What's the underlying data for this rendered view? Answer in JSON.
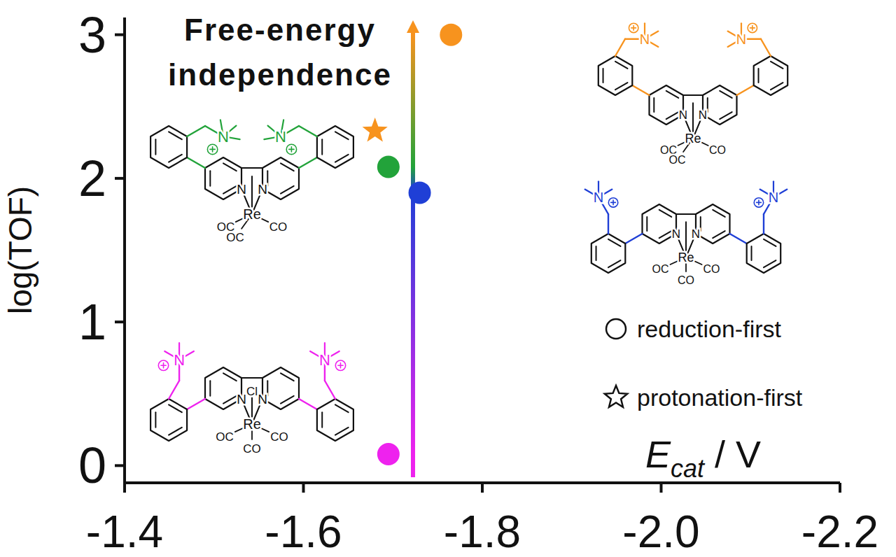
{
  "chart_data": {
    "type": "scatter",
    "title": "Free-energy independence",
    "xlabel": [
      "E",
      "cat",
      " / V"
    ],
    "ylabel": "log(TOF)",
    "xlim": [
      -1.4,
      -2.2
    ],
    "ylim": [
      -0.12,
      3.12
    ],
    "xticks": [
      -1.4,
      -1.6,
      -1.8,
      {
        "value": -2.0,
        "label": "-2.0"
      },
      -2.2
    ],
    "yticks": [
      0,
      1,
      2,
      3
    ],
    "grid": false,
    "legend": "right",
    "series": [
      {
        "name": "reduction-first",
        "marker": "circle",
        "colors": [
          "#f7931e",
          "#22a33a",
          "#1f3fd6",
          "#ee22ee"
        ],
        "x": [
          -1.765,
          -1.695,
          -1.73,
          -1.695
        ],
        "values": [
          3.0,
          2.08,
          1.9,
          0.08
        ]
      },
      {
        "name": "protonation-first",
        "marker": "star",
        "color": "#f7931e",
        "x": [
          -1.68
        ],
        "values": [
          2.33
        ]
      }
    ]
  },
  "structures": [
    {
      "color": "#22a33a",
      "ring_n": [
        "N",
        "N"
      ],
      "ammonium": [
        "N",
        "N"
      ],
      "metal": "Re",
      "ligands": [
        "OC",
        "OC",
        "CO"
      ]
    },
    {
      "color": "#f7931e",
      "ring_n": [
        "N",
        "N"
      ],
      "ammonium": [
        "N",
        "N"
      ],
      "metal": "Re",
      "ligands": [
        "OC",
        "OC",
        "CO"
      ]
    },
    {
      "color": "#1f3fd6",
      "ring_n": [
        "N",
        "N"
      ],
      "ammonium": [
        "N",
        "N"
      ],
      "metal": "Re",
      "ligands": [
        "OC",
        "CO",
        "CO"
      ]
    },
    {
      "color": "#ee22ee",
      "axial": "Cl",
      "ring_n": [
        "N",
        "N"
      ],
      "ammonium": [
        "N",
        "N"
      ],
      "metal": "Re",
      "ligands": [
        "OC",
        "CO",
        "CO"
      ]
    }
  ]
}
